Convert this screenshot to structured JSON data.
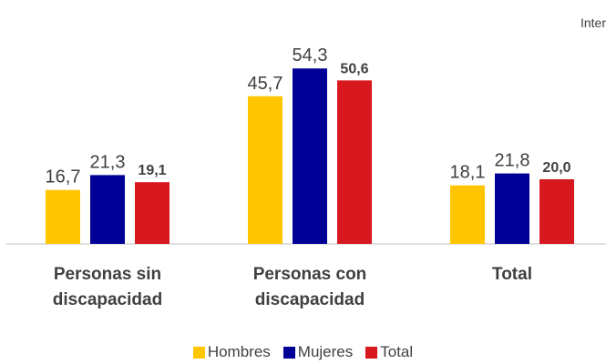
{
  "chart_data": {
    "type": "bar",
    "annotation": "Inter",
    "categories": [
      "Personas sin discapacidad",
      "Personas con discapacidad",
      "Total"
    ],
    "series": [
      {
        "name": "Hombres",
        "color": "#ffc600",
        "values": [
          16.7,
          45.7,
          18.1
        ],
        "value_labels": [
          "16,7",
          "45,7",
          "18,1"
        ]
      },
      {
        "name": "Mujeres",
        "color": "#000096",
        "values": [
          21.3,
          54.3,
          21.8
        ],
        "value_labels": [
          "21,3",
          "54,3",
          "21,8"
        ]
      },
      {
        "name": "Total",
        "color": "#d7181f",
        "values": [
          19.1,
          50.6,
          20.0
        ],
        "value_labels": [
          "19,1",
          "50,6",
          "20,0"
        ]
      }
    ],
    "ylim": [
      0,
      60
    ],
    "legend": "bottom"
  }
}
